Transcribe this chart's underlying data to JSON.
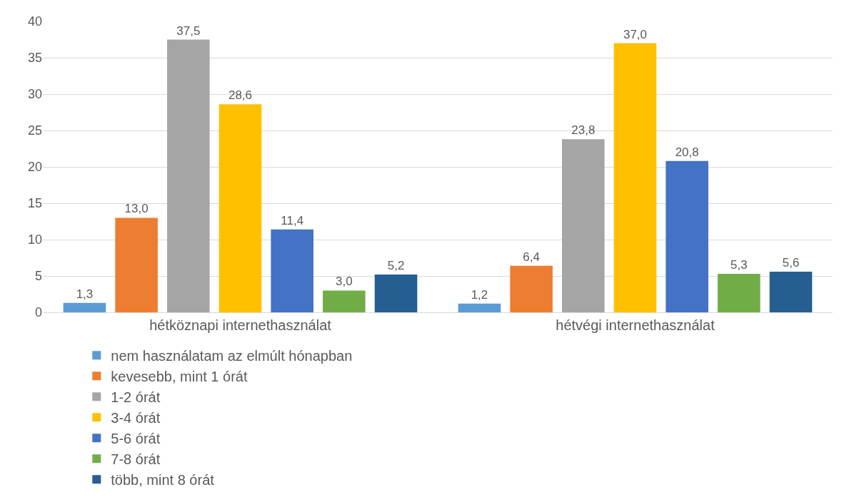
{
  "chart_data": {
    "type": "bar",
    "categories": [
      "hétköznapi internethasználat",
      "hétvégi internethasználat"
    ],
    "series": [
      {
        "name": "nem használatam az elmúlt hónapban",
        "color": "#5b9bd5",
        "values": [
          1.3,
          1.2
        ],
        "value_labels": [
          "1,3",
          "1,2"
        ]
      },
      {
        "name": "kevesebb, mint 1 órát",
        "color": "#ed7d31",
        "values": [
          13.0,
          6.4
        ],
        "value_labels": [
          "13,0",
          "6,4"
        ]
      },
      {
        "name": "1-2 órát",
        "color": "#a5a5a5",
        "values": [
          37.5,
          23.8
        ],
        "value_labels": [
          "37,5",
          "23,8"
        ]
      },
      {
        "name": "3-4 órát",
        "color": "#ffc000",
        "values": [
          28.6,
          37.0
        ],
        "value_labels": [
          "28,6",
          "37,0"
        ]
      },
      {
        "name": "5-6 órát",
        "color": "#4472c4",
        "values": [
          11.4,
          20.8
        ],
        "value_labels": [
          "11,4",
          "20,8"
        ]
      },
      {
        "name": "7-8 órát",
        "color": "#70ad47",
        "values": [
          3.0,
          5.3
        ],
        "value_labels": [
          "3,0",
          "5,3"
        ]
      },
      {
        "name": "több, mint 8 órát",
        "color": "#255e91",
        "values": [
          5.2,
          5.6
        ],
        "value_labels": [
          "5,2",
          "5,6"
        ]
      }
    ],
    "ylim": [
      0,
      40
    ],
    "yticks": [
      0,
      5,
      10,
      15,
      20,
      25,
      30,
      35,
      40
    ],
    "grid": "y",
    "legend": "bottom"
  }
}
